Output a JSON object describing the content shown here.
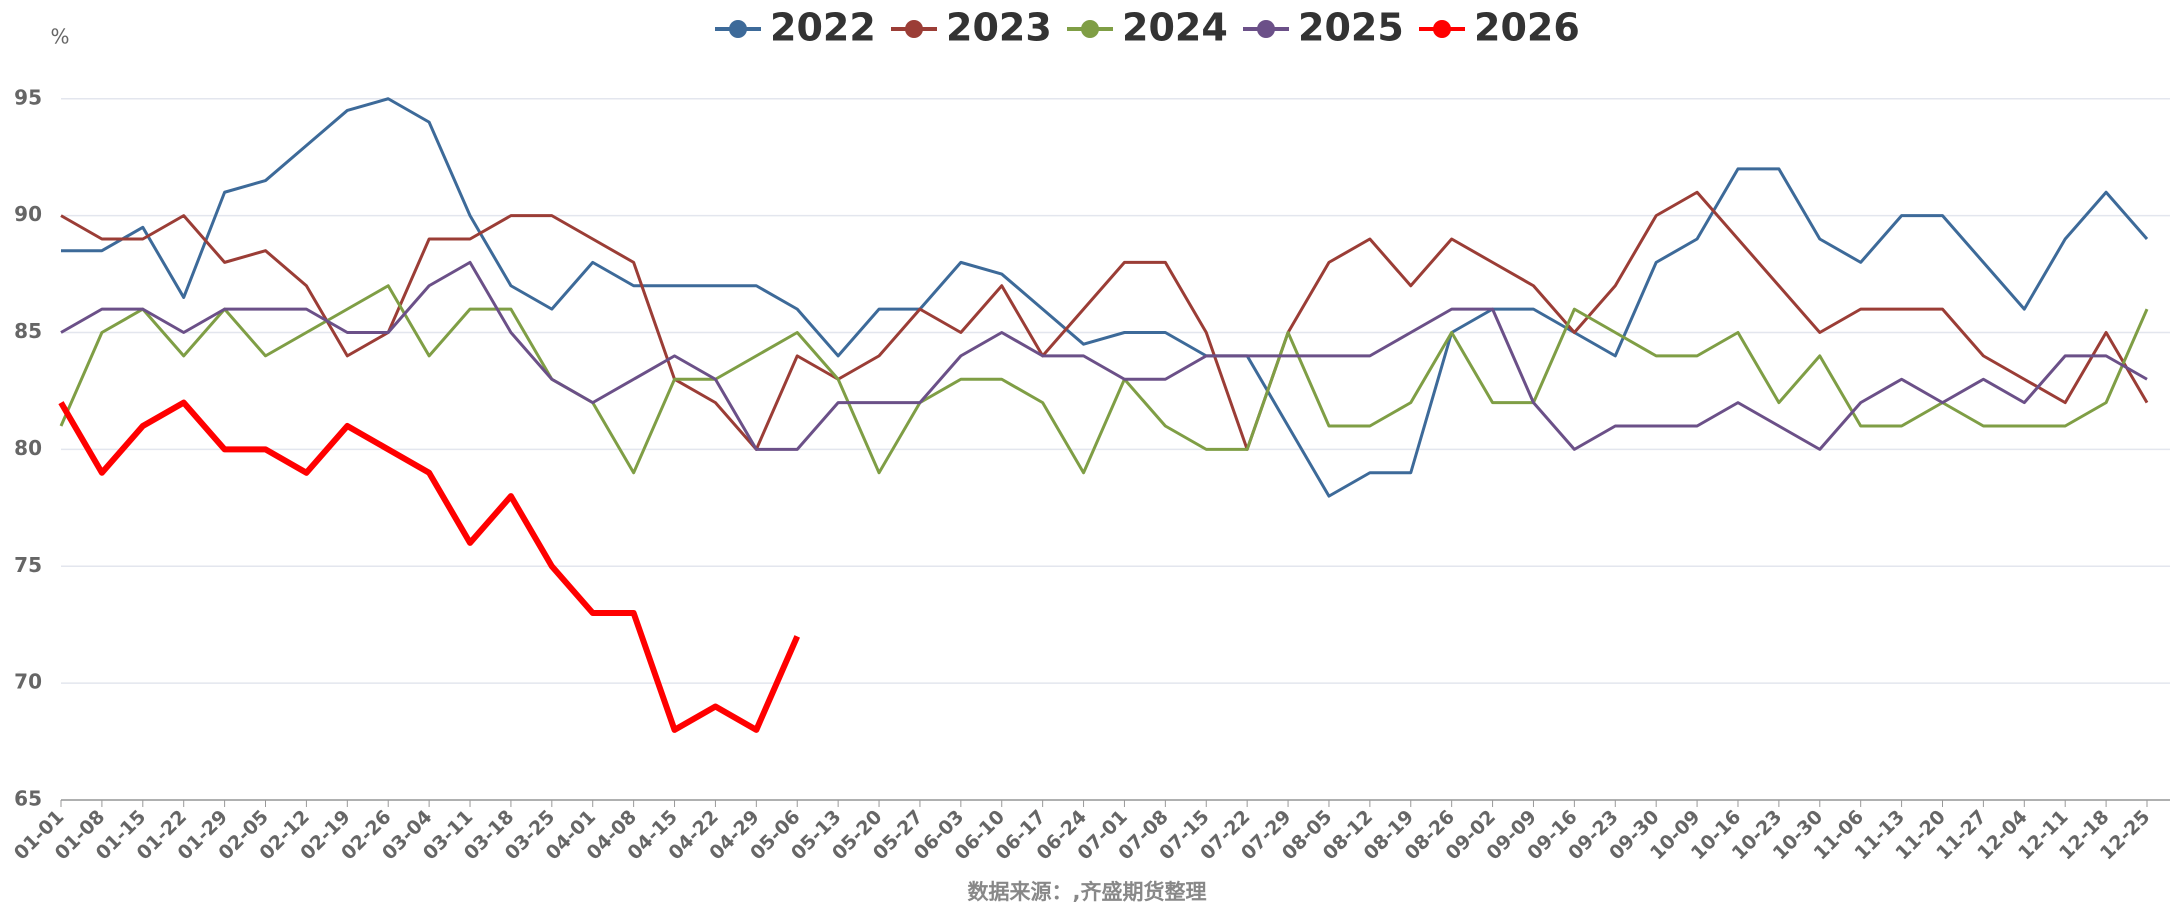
{
  "chart_data": {
    "type": "line",
    "y_label": "%",
    "source": "数据来源：,齐盛期货整理",
    "categories": [
      "01-01",
      "01-08",
      "01-15",
      "01-22",
      "01-29",
      "02-05",
      "02-12",
      "02-19",
      "02-26",
      "03-04",
      "03-11",
      "03-18",
      "03-25",
      "04-01",
      "04-08",
      "04-15",
      "04-22",
      "04-29",
      "05-06",
      "05-13",
      "05-20",
      "05-27",
      "06-03",
      "06-10",
      "06-17",
      "06-24",
      "07-01",
      "07-08",
      "07-15",
      "07-22",
      "07-29",
      "08-05",
      "08-12",
      "08-19",
      "08-26",
      "09-02",
      "09-09",
      "09-16",
      "09-23",
      "09-30",
      "10-09",
      "10-16",
      "10-23",
      "10-30",
      "11-06",
      "11-13",
      "11-20",
      "11-27",
      "12-04",
      "12-11",
      "12-18",
      "12-25"
    ],
    "series": [
      {
        "name": "2022",
        "color": "#3d6a99",
        "values": [
          88.5,
          88.5,
          89.5,
          86.5,
          91,
          91.5,
          93,
          94.5,
          95,
          94,
          90,
          87,
          86,
          88,
          87,
          87,
          87,
          87,
          86,
          84,
          86,
          86,
          88,
          87.5,
          86,
          84.5,
          85,
          85,
          84,
          84,
          81,
          78,
          79,
          79,
          85,
          86,
          86,
          85,
          84,
          88,
          89,
          92,
          92,
          89,
          88,
          90,
          90,
          88,
          86,
          89,
          91,
          89
        ]
      },
      {
        "name": "2023",
        "color": "#9b3d36",
        "values": [
          90,
          89,
          89,
          90,
          88,
          88.5,
          87,
          84,
          85,
          89,
          89,
          90,
          90,
          89,
          88,
          83,
          82,
          80,
          84,
          83,
          84,
          86,
          85,
          87,
          84,
          86,
          88,
          88,
          85,
          80,
          85,
          88,
          89,
          87,
          89,
          88,
          87,
          85,
          87,
          90,
          91,
          89,
          87,
          85,
          86,
          86,
          86,
          84,
          83,
          82,
          85,
          82
        ]
      },
      {
        "name": "2024",
        "color": "#7f9e45",
        "values": [
          81,
          85,
          86,
          84,
          86,
          84,
          85,
          86,
          87,
          84,
          86,
          86,
          83,
          82,
          79,
          83,
          83,
          84,
          85,
          83,
          79,
          82,
          83,
          83,
          82,
          79,
          83,
          81,
          80,
          80,
          85,
          81,
          81,
          82,
          85,
          82,
          82,
          86,
          85,
          84,
          84,
          85,
          82,
          84,
          81,
          81,
          82,
          81,
          81,
          81,
          82,
          86
        ]
      },
      {
        "name": "2025",
        "color": "#6b5088",
        "values": [
          85,
          86,
          86,
          85,
          86,
          86,
          86,
          85,
          85,
          87,
          88,
          85,
          83,
          82,
          83,
          84,
          83,
          80,
          80,
          82,
          82,
          82,
          84,
          85,
          84,
          84,
          83,
          83,
          84,
          84,
          84,
          84,
          84,
          85,
          86,
          86,
          82,
          80,
          81,
          81,
          81,
          82,
          81,
          80,
          82,
          83,
          82,
          83,
          82,
          84,
          84,
          83
        ]
      },
      {
        "name": "2026",
        "color": "#ff0000",
        "values": [
          82,
          79,
          81,
          82,
          80,
          80,
          79,
          81,
          80,
          79,
          76,
          78,
          75,
          73,
          73,
          68,
          69,
          68,
          72,
          null,
          null,
          null,
          null,
          null,
          null,
          null,
          null,
          null,
          null,
          null,
          null,
          null,
          null,
          null,
          null,
          null,
          null,
          null,
          null,
          null,
          null,
          null,
          null,
          null,
          null,
          null,
          null,
          null,
          null,
          null,
          null,
          null
        ]
      }
    ],
    "ylim": [
      65,
      97
    ],
    "yticks": [
      65,
      70,
      75,
      80,
      85,
      90,
      95
    ],
    "grid": true
  }
}
